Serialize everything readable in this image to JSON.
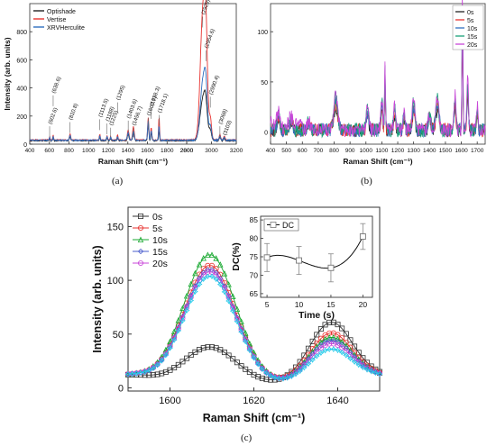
{
  "captions": {
    "a": "(a)",
    "b": "(b)",
    "c": "(c)"
  },
  "chart_data": [
    {
      "id": "a",
      "type": "line",
      "xlabel": "Raman Shift (cm⁻¹)",
      "ylabel": "Intensity (arb. units)",
      "xlim": [
        400,
        3200
      ],
      "ylim": [
        0,
        1000
      ],
      "x_ticks": [
        400,
        600,
        800,
        1000,
        1200,
        1400,
        1600,
        1800,
        2000,
        2800,
        3000,
        3200
      ],
      "x_tick_labels": [
        "400",
        "600",
        "800",
        "1000",
        "1200",
        "1400",
        "1600",
        "1800",
        "2000",
        "2800",
        "3000",
        "3200"
      ],
      "y_ticks": [
        0,
        200,
        400,
        600,
        800
      ],
      "x_break": [
        2000,
        2800
      ],
      "legend": "top-left",
      "series": [
        {
          "name": "Optishade",
          "color": "#222222",
          "baseline": 25,
          "peaks": [
            [
              602.6,
              15,
              4
            ],
            [
              638.6,
              20,
              4
            ],
            [
              810.8,
              30,
              6
            ],
            [
              1113.5,
              25,
              5
            ],
            [
              1188,
              20,
              5
            ],
            [
              1225,
              15,
              5
            ],
            [
              1295,
              20,
              5
            ],
            [
              1403.6,
              45,
              8
            ],
            [
              1456.7,
              50,
              8
            ],
            [
              1607.7,
              120,
              6
            ],
            [
              1638.3,
              55,
              6
            ],
            [
              1718.1,
              70,
              5
            ],
            [
              2929,
              280,
              22
            ],
            [
              2954.6,
              180,
              14
            ],
            [
              2990.4,
              70,
              10
            ],
            [
              3068,
              25,
              6
            ],
            [
              3103,
              15,
              6
            ]
          ]
        },
        {
          "name": "Vertise",
          "color": "#e8322f",
          "baseline": 30,
          "peaks": [
            [
              602.6,
              25,
              4
            ],
            [
              638.6,
              35,
              4
            ],
            [
              810.8,
              45,
              6
            ],
            [
              1113.5,
              40,
              5
            ],
            [
              1188,
              30,
              5
            ],
            [
              1225,
              25,
              5
            ],
            [
              1295,
              35,
              5
            ],
            [
              1403.6,
              70,
              8
            ],
            [
              1456.7,
              95,
              8
            ],
            [
              1607.7,
              160,
              6
            ],
            [
              1638.3,
              85,
              6
            ],
            [
              1718.1,
              160,
              5
            ],
            [
              2929,
              870,
              20
            ],
            [
              2954.6,
              620,
              13
            ],
            [
              2990.4,
              150,
              10
            ],
            [
              3068,
              40,
              6
            ],
            [
              3103,
              25,
              6
            ]
          ]
        },
        {
          "name": "XRVHerculite",
          "color": "#2f6fc0",
          "baseline": 28,
          "peaks": [
            [
              602.6,
              20,
              4
            ],
            [
              638.6,
              25,
              4
            ],
            [
              810.8,
              35,
              6
            ],
            [
              1113.5,
              30,
              5
            ],
            [
              1188,
              25,
              5
            ],
            [
              1225,
              20,
              5
            ],
            [
              1295,
              25,
              5
            ],
            [
              1403.6,
              55,
              8
            ],
            [
              1456.7,
              65,
              8
            ],
            [
              1607.7,
              140,
              6
            ],
            [
              1638.3,
              70,
              6
            ],
            [
              1718.1,
              100,
              5
            ],
            [
              2929,
              400,
              20
            ],
            [
              2954.6,
              300,
              13
            ],
            [
              2990.4,
              100,
              10
            ],
            [
              3068,
              30,
              6
            ],
            [
              3103,
              20,
              6
            ]
          ]
        }
      ],
      "annotations": [
        {
          "text": "(602.6)",
          "x": 602.6,
          "y": 140
        },
        {
          "text": "(638.6)",
          "x": 638.6,
          "y": 360
        },
        {
          "text": "(810.8)",
          "x": 810.8,
          "y": 170
        },
        {
          "text": "(1113.5)",
          "x": 1113.5,
          "y": 190
        },
        {
          "text": "(1188)",
          "x": 1188,
          "y": 160
        },
        {
          "text": "(1225)",
          "x": 1225,
          "y": 130
        },
        {
          "text": "(1295)",
          "x": 1295,
          "y": 310
        },
        {
          "text": "(1403.6)",
          "x": 1403.6,
          "y": 180
        },
        {
          "text": "(1456.7)",
          "x": 1456.7,
          "y": 130
        },
        {
          "text": "(1607.7)",
          "x": 1607.7,
          "y": 200
        },
        {
          "text": "(1638.3)",
          "x": 1638.3,
          "y": 270
        },
        {
          "text": "(1718.1)",
          "x": 1718.1,
          "y": 220
        },
        {
          "text": "(2929)",
          "x": 2929,
          "y": 920
        },
        {
          "text": "(2954.6)",
          "x": 2954.6,
          "y": 680
        },
        {
          "text": "(2990.4)",
          "x": 2990.4,
          "y": 350
        },
        {
          "text": "(3068)",
          "x": 3068,
          "y": 140
        },
        {
          "text": "(3103)",
          "x": 3103,
          "y": 60
        }
      ]
    },
    {
      "id": "b",
      "type": "line",
      "xlabel": "Raman Shift (cm⁻¹)",
      "ylabel": "",
      "xlim": [
        400,
        1750
      ],
      "ylim": [
        -12,
        128
      ],
      "x_ticks": [
        400,
        500,
        600,
        700,
        800,
        900,
        1000,
        1100,
        1200,
        1300,
        1400,
        1500,
        1600,
        1700
      ],
      "y_ticks": [
        0,
        50,
        100
      ],
      "legend": "top-right",
      "series": [
        {
          "name": "0s",
          "color": "#222222",
          "offset": 0
        },
        {
          "name": "5s",
          "color": "#e8322f",
          "offset": 1
        },
        {
          "name": "10s",
          "color": "#2f6fc0",
          "offset": 2
        },
        {
          "name": "15s",
          "color": "#1aa07a",
          "offset": 3
        },
        {
          "name": "20s",
          "color": "#c847d8",
          "offset": 4
        }
      ],
      "peaks": [
        [
          450,
          15,
          8
        ],
        [
          530,
          10,
          10
        ],
        [
          640,
          8,
          10
        ],
        [
          810,
          30,
          12
        ],
        [
          1010,
          18,
          8
        ],
        [
          1100,
          25,
          6
        ],
        [
          1120,
          55,
          3
        ],
        [
          1180,
          20,
          6
        ],
        [
          1240,
          15,
          6
        ],
        [
          1300,
          25,
          8
        ],
        [
          1400,
          15,
          8
        ],
        [
          1450,
          28,
          10
        ],
        [
          1560,
          30,
          6
        ],
        [
          1607,
          115,
          3
        ],
        [
          1640,
          45,
          5
        ],
        [
          1700,
          20,
          5
        ]
      ]
    },
    {
      "id": "c",
      "type": "line",
      "xlabel": "Raman Shift (cm⁻¹)",
      "ylabel": "Intensity (arb. units)",
      "xlim": [
        1590,
        1650
      ],
      "ylim": [
        -3,
        168
      ],
      "x_ticks": [
        1600,
        1620,
        1640
      ],
      "y_ticks": [
        0,
        50,
        100,
        150
      ],
      "legend": "top-left",
      "series": [
        {
          "name": "0s",
          "color": "#333333",
          "marker": "square",
          "p1": 34,
          "p2": 57
        },
        {
          "name": "5s",
          "color": "#e8322f",
          "marker": "circle",
          "p1": 110,
          "p2": 47
        },
        {
          "name": "10s",
          "color": "#18a830",
          "marker": "triangle",
          "p1": 120,
          "p2": 43
        },
        {
          "name": "15s",
          "color": "#4a5ccc",
          "marker": "diamond",
          "p1": 106,
          "p2": 40
        },
        {
          "name": "20s",
          "color": "#c844d8",
          "marker": "circle",
          "p1": 104,
          "p2": 37
        },
        {
          "name": "",
          "color": "#1ec8e8",
          "marker": "star",
          "p1": 100,
          "p2": 32
        }
      ],
      "inset": {
        "type": "line",
        "xlabel": "Time (s)",
        "ylabel": "DC(%)",
        "xlim": [
          4,
          21.5
        ],
        "ylim": [
          64,
          86
        ],
        "x_ticks": [
          5,
          10,
          15,
          20
        ],
        "y_ticks": [
          65,
          70,
          75,
          80,
          85
        ],
        "legend": "top-left",
        "series": [
          {
            "name": "DC",
            "x": [
              5,
              10,
              15,
              20
            ],
            "y": [
              74.8,
              74.0,
              72.0,
              80.5
            ],
            "err": [
              3.8,
              3.8,
              3.8,
              3.5
            ]
          }
        ]
      }
    }
  ]
}
